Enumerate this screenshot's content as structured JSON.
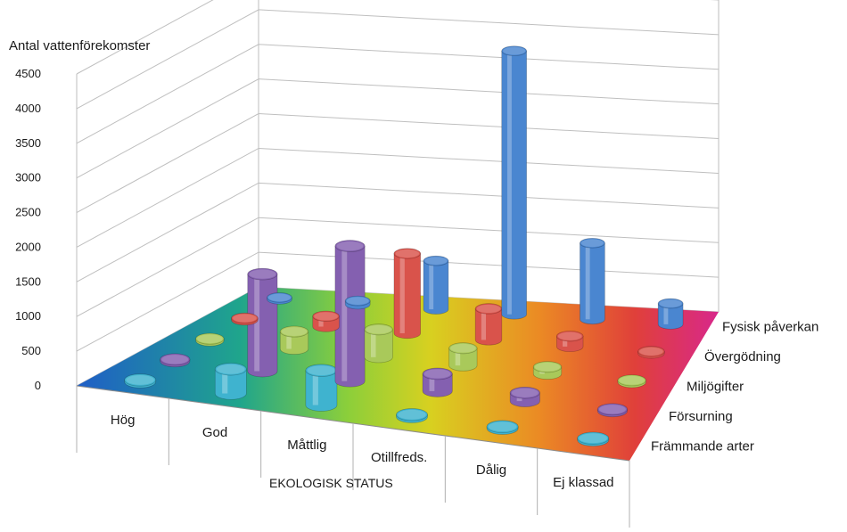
{
  "chart_data": {
    "type": "bar",
    "subtype": "3d-cylinder",
    "title": "",
    "ylabel": "Antal vattenförekomster",
    "xlabel": "EKOLOGISK STATUS",
    "ylim": [
      0,
      4500
    ],
    "yticks": [
      "0",
      "500",
      "1000",
      "1500",
      "2000",
      "2500",
      "3000",
      "3500",
      "4000",
      "4500"
    ],
    "categories": [
      "Hög",
      "God",
      "Måttlig",
      "Otillfreds.",
      "Dålig",
      "Ej klassad"
    ],
    "series": [
      {
        "name": "Fysisk påverkan",
        "color": "#4a86d0",
        "values": [
          20,
          50,
          700,
          3800,
          1100,
          300
        ]
      },
      {
        "name": "Övergödning",
        "color": "#d9534b",
        "values": [
          10,
          150,
          1150,
          450,
          150,
          20
        ]
      },
      {
        "name": "Miljögifter",
        "color": "#a9c95a",
        "values": [
          5,
          250,
          400,
          250,
          100,
          10
        ]
      },
      {
        "name": "Försurning",
        "color": "#8460b0",
        "values": [
          10,
          1400,
          1950,
          250,
          120,
          15
        ]
      },
      {
        "name": "Främmande arter",
        "color": "#3fb3cf",
        "values": [
          10,
          350,
          500,
          30,
          20,
          15
        ]
      }
    ],
    "grid": true,
    "floor": "rainbow-gradient",
    "legend": "depth-axis-labels-right"
  }
}
